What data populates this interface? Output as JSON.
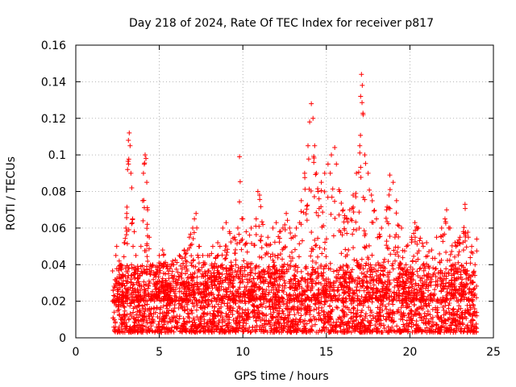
{
  "chart_data": {
    "type": "scatter",
    "title": "Day 218 of 2024, Rate Of TEC Index for receiver p817",
    "xlabel": "GPS time / hours",
    "ylabel": "ROTI / TECUs",
    "xlim": [
      0,
      25
    ],
    "ylim": [
      0,
      0.16
    ],
    "xticks": [
      0,
      5,
      10,
      15,
      20,
      25
    ],
    "xtick_labels": [
      "0",
      "5",
      "10",
      "15",
      "20",
      "25"
    ],
    "yticks": [
      0,
      0.02,
      0.04,
      0.06,
      0.08,
      0.1,
      0.12,
      0.14,
      0.16
    ],
    "ytick_labels": [
      "0",
      "0.02",
      "0.04",
      "0.06",
      "0.08",
      "0.1",
      "0.12",
      "0.14",
      "0.16"
    ],
    "grid": true,
    "marker": "+",
    "series": [
      {
        "name": "ROTI",
        "color": "#ff0000",
        "points": [
          [
            2.3,
            0.014
          ],
          [
            2.35,
            0.02
          ],
          [
            2.4,
            0.045
          ],
          [
            2.45,
            0.05
          ],
          [
            2.5,
            0.03
          ],
          [
            2.6,
            0.042
          ],
          [
            2.7,
            0.038
          ],
          [
            2.8,
            0.025
          ],
          [
            2.9,
            0.052
          ],
          [
            3.0,
            0.06
          ],
          [
            3.05,
            0.068
          ],
          [
            3.1,
            0.092
          ],
          [
            3.15,
            0.108
          ],
          [
            3.2,
            0.112
          ],
          [
            3.25,
            0.105
          ],
          [
            3.3,
            0.09
          ],
          [
            3.35,
            0.082
          ],
          [
            3.4,
            0.065
          ],
          [
            3.5,
            0.058
          ],
          [
            3.6,
            0.045
          ],
          [
            3.7,
            0.035
          ],
          [
            3.9,
            0.05
          ],
          [
            4.0,
            0.075
          ],
          [
            4.05,
            0.09
          ],
          [
            4.1,
            0.095
          ],
          [
            4.15,
            0.1
          ],
          [
            4.2,
            0.098
          ],
          [
            4.25,
            0.085
          ],
          [
            4.3,
            0.07
          ],
          [
            4.4,
            0.055
          ],
          [
            4.6,
            0.04
          ],
          [
            4.8,
            0.035
          ],
          [
            5.0,
            0.045
          ],
          [
            5.2,
            0.048
          ],
          [
            5.5,
            0.04
          ],
          [
            5.8,
            0.042
          ],
          [
            6.2,
            0.045
          ],
          [
            6.5,
            0.048
          ],
          [
            6.8,
            0.055
          ],
          [
            7.0,
            0.06
          ],
          [
            7.1,
            0.065
          ],
          [
            7.2,
            0.068
          ],
          [
            7.4,
            0.05
          ],
          [
            7.6,
            0.045
          ],
          [
            7.9,
            0.045
          ],
          [
            8.2,
            0.05
          ],
          [
            8.5,
            0.052
          ],
          [
            8.8,
            0.06
          ],
          [
            9.0,
            0.063
          ],
          [
            9.2,
            0.058
          ],
          [
            9.5,
            0.055
          ],
          [
            9.7,
            0.06
          ],
          [
            9.8,
            0.099
          ],
          [
            10.0,
            0.065
          ],
          [
            10.2,
            0.058
          ],
          [
            10.5,
            0.06
          ],
          [
            10.8,
            0.065
          ],
          [
            10.9,
            0.08
          ],
          [
            11.0,
            0.078
          ],
          [
            11.2,
            0.062
          ],
          [
            11.5,
            0.055
          ],
          [
            11.8,
            0.06
          ],
          [
            12.0,
            0.063
          ],
          [
            12.2,
            0.058
          ],
          [
            12.4,
            0.06
          ],
          [
            12.6,
            0.068
          ],
          [
            12.8,
            0.06
          ],
          [
            13.0,
            0.055
          ],
          [
            13.2,
            0.06
          ],
          [
            13.4,
            0.063
          ],
          [
            13.5,
            0.075
          ],
          [
            13.7,
            0.09
          ],
          [
            13.9,
            0.105
          ],
          [
            14.0,
            0.118
          ],
          [
            14.1,
            0.128
          ],
          [
            14.2,
            0.12
          ],
          [
            14.3,
            0.105
          ],
          [
            14.4,
            0.09
          ],
          [
            14.5,
            0.08
          ],
          [
            14.7,
            0.085
          ],
          [
            14.9,
            0.09
          ],
          [
            15.1,
            0.095
          ],
          [
            15.3,
            0.1
          ],
          [
            15.5,
            0.104
          ],
          [
            15.6,
            0.095
          ],
          [
            15.8,
            0.08
          ],
          [
            16.0,
            0.07
          ],
          [
            16.2,
            0.065
          ],
          [
            16.4,
            0.07
          ],
          [
            16.6,
            0.078
          ],
          [
            16.8,
            0.09
          ],
          [
            17.0,
            0.105
          ],
          [
            17.05,
            0.132
          ],
          [
            17.1,
            0.144
          ],
          [
            17.15,
            0.138
          ],
          [
            17.2,
            0.122
          ],
          [
            17.3,
            0.1
          ],
          [
            17.5,
            0.09
          ],
          [
            17.7,
            0.078
          ],
          [
            18.0,
            0.065
          ],
          [
            18.3,
            0.06
          ],
          [
            18.6,
            0.07
          ],
          [
            18.8,
            0.089
          ],
          [
            19.0,
            0.085
          ],
          [
            19.2,
            0.075
          ],
          [
            19.5,
            0.06
          ],
          [
            19.8,
            0.05
          ],
          [
            20.1,
            0.055
          ],
          [
            20.3,
            0.063
          ],
          [
            20.5,
            0.06
          ],
          [
            20.8,
            0.05
          ],
          [
            21.0,
            0.052
          ],
          [
            21.3,
            0.048
          ],
          [
            21.6,
            0.055
          ],
          [
            21.9,
            0.06
          ],
          [
            22.1,
            0.065
          ],
          [
            22.2,
            0.07
          ],
          [
            22.4,
            0.06
          ],
          [
            22.7,
            0.052
          ],
          [
            23.0,
            0.055
          ],
          [
            23.2,
            0.058
          ],
          [
            23.3,
            0.073
          ],
          [
            23.5,
            0.055
          ],
          [
            23.7,
            0.05
          ],
          [
            23.9,
            0.04
          ],
          [
            24.0,
            0.054
          ],
          [
            24.0,
            0.012
          ]
        ]
      }
    ],
    "band": {
      "comment": "dense cloud of low-level points spanning the full observation window",
      "x": [
        2.2,
        24.0
      ],
      "y": [
        0.003,
        0.04
      ]
    }
  }
}
